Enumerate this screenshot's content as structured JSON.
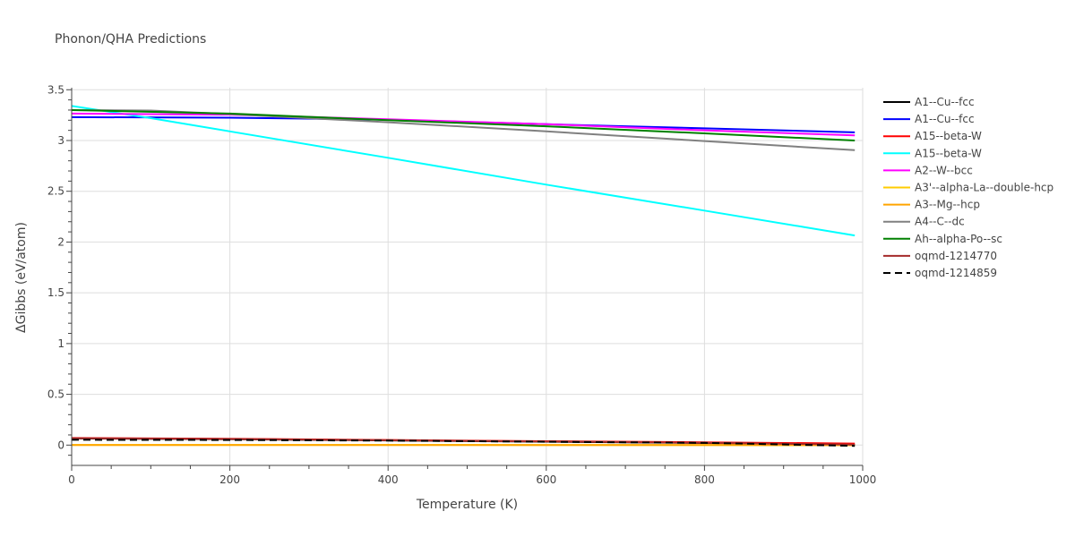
{
  "chart_data": {
    "type": "line",
    "title": "Phonon/QHA Predictions",
    "xlabel": "Temperature (K)",
    "ylabel": "ΔGibbs (eV/atom)",
    "xlim": [
      0,
      1000
    ],
    "ylim": [
      -0.2,
      3.52
    ],
    "x_ticks": [
      0,
      200,
      400,
      600,
      800,
      1000
    ],
    "x_tick_labels": [
      "0",
      "200",
      "400",
      "600",
      "800",
      "1000"
    ],
    "y_ticks": [
      0,
      0.5,
      1,
      1.5,
      2,
      2.5,
      3,
      3.5
    ],
    "y_tick_labels": [
      "0",
      "0.5",
      "1",
      "1.5",
      "2",
      "2.5",
      "3",
      "3.5"
    ],
    "grid": true,
    "legend_position": "right",
    "series": [
      {
        "name": "A1--Cu--fcc",
        "color": "#000000",
        "dash": "solid",
        "x": [
          0,
          200,
          400,
          600,
          800,
          990
        ],
        "y": [
          0.065,
          0.058,
          0.046,
          0.034,
          0.02,
          0.003
        ]
      },
      {
        "name": "A1--Cu--fcc",
        "color": "#0000ff",
        "dash": "solid",
        "x": [
          0,
          200,
          400,
          600,
          800,
          990
        ],
        "y": [
          3.23,
          3.225,
          3.205,
          3.16,
          3.12,
          3.08
        ]
      },
      {
        "name": "A15--beta-W",
        "color": "#ff0000",
        "dash": "solid",
        "x": [
          0,
          200,
          400,
          600,
          800,
          990
        ],
        "y": [
          0.07,
          0.062,
          0.05,
          0.038,
          0.027,
          0.015
        ]
      },
      {
        "name": "A15--beta-W",
        "color": "#00ffff",
        "dash": "solid",
        "x": [
          0,
          100,
          200,
          400,
          600,
          800,
          990
        ],
        "y": [
          3.34,
          3.22,
          3.09,
          2.83,
          2.565,
          2.31,
          2.065
        ]
      },
      {
        "name": "A2--W--bcc",
        "color": "#ff00ff",
        "dash": "solid",
        "x": [
          0,
          200,
          400,
          600,
          800,
          990
        ],
        "y": [
          3.265,
          3.255,
          3.21,
          3.16,
          3.1,
          3.05
        ]
      },
      {
        "name": "A3'--alpha-La--double-hcp",
        "color": "#ffcc00",
        "dash": "solid",
        "x": [
          0,
          200,
          400,
          600,
          800,
          990
        ],
        "y": [
          0.002,
          0.002,
          0.002,
          0.001,
          0.001,
          0.0
        ]
      },
      {
        "name": "A3--Mg--hcp",
        "color": "#ffa500",
        "dash": "solid",
        "x": [
          0,
          200,
          400,
          600,
          800,
          990
        ],
        "y": [
          0.001,
          0.001,
          0.001,
          0.0,
          0.0,
          -0.001
        ]
      },
      {
        "name": "A4--C--dc",
        "color": "#808080",
        "dash": "solid",
        "x": [
          0,
          100,
          200,
          400,
          600,
          800,
          990
        ],
        "y": [
          3.3,
          3.295,
          3.26,
          3.18,
          3.09,
          2.995,
          2.905
        ]
      },
      {
        "name": "Ah--alpha-Po--sc",
        "color": "#008000",
        "dash": "solid",
        "x": [
          0,
          200,
          400,
          600,
          800,
          990
        ],
        "y": [
          3.3,
          3.265,
          3.2,
          3.14,
          3.07,
          3.0
        ]
      },
      {
        "name": "oqmd-1214770",
        "color": "#a52a2a",
        "dash": "solid",
        "x": [
          0,
          200,
          400,
          600,
          800,
          990
        ],
        "y": [
          0.068,
          0.06,
          0.048,
          0.036,
          0.022,
          0.005
        ]
      },
      {
        "name": "oqmd-1214859",
        "color": "#000000",
        "dash": "dash",
        "x": [
          0,
          200,
          400,
          600,
          800,
          990
        ],
        "y": [
          0.052,
          0.05,
          0.044,
          0.033,
          0.022,
          -0.008
        ]
      }
    ]
  }
}
